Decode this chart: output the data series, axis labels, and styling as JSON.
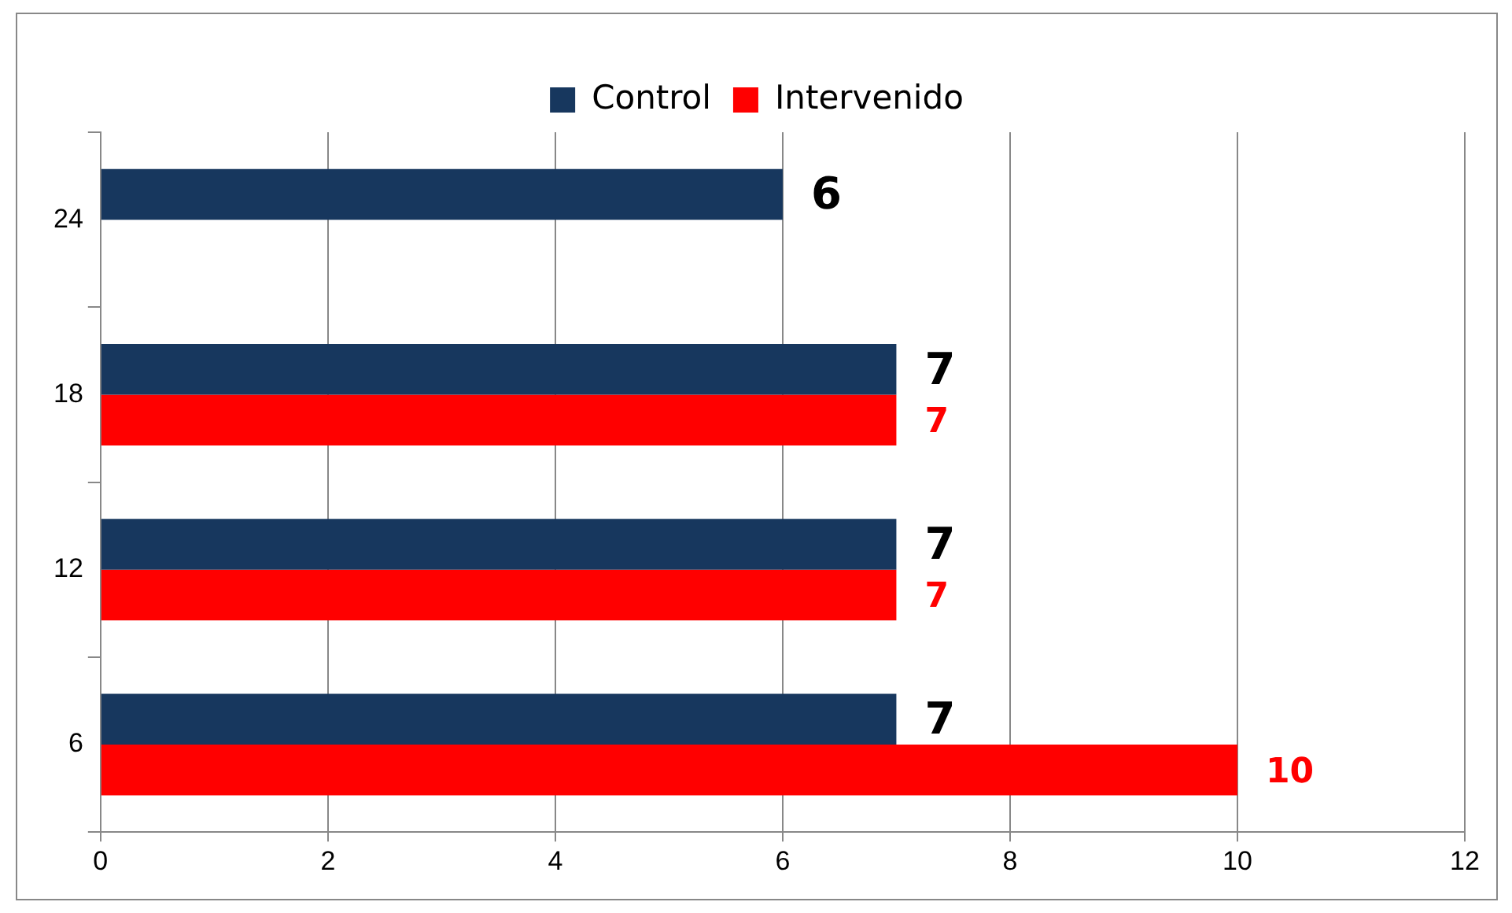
{
  "chart_data": {
    "type": "bar",
    "orientation": "horizontal",
    "categories": [
      "24",
      "18",
      "12",
      "6"
    ],
    "series": [
      {
        "name": "Control",
        "color": "#17375e",
        "values": [
          6,
          7,
          7,
          7
        ]
      },
      {
        "name": "Intervenido",
        "color": "#ff0000",
        "values": [
          null,
          7,
          7,
          10
        ]
      }
    ],
    "xlim": [
      0,
      12
    ],
    "xticks": [
      0,
      2,
      4,
      6,
      8,
      10,
      12
    ],
    "grid": "x",
    "legend": "top",
    "data_labels": true
  }
}
